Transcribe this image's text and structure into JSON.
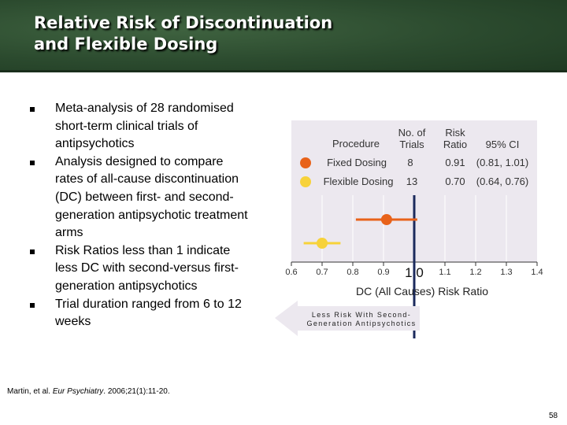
{
  "slide": {
    "title_line1": "Relative Risk of Discontinuation",
    "title_line2": "and Flexible Dosing",
    "bullets": [
      "Meta-analysis of 28 randomised short-term clinical trials of antipsychotics",
      "Analysis designed to compare rates of all-cause discontinuation (DC) between first- and second-generation antipsychotic treatment arms",
      "Risk Ratios less than 1 indicate less DC with second-versus first-generation antipsychotics",
      "Trial duration ranged from 6 to 12 weeks"
    ],
    "citation_prefix": "Martin, et al. ",
    "citation_journal": "Eur Psychiatry",
    "citation_suffix": ". 2006;21(1):11-20.",
    "page_number": "58"
  },
  "table": {
    "headers": {
      "procedure": "Procedure",
      "trials_l1": "No. of",
      "trials_l2": "Trials",
      "ratio_l1": "Risk",
      "ratio_l2": "Ratio",
      "ci": "95% CI"
    },
    "rows": [
      {
        "procedure": "Fixed Dosing",
        "trials": "8",
        "ratio": "0.91",
        "ci": "(0.81, 1.01)",
        "color": "#e8621a"
      },
      {
        "procedure": "Flexible Dosing",
        "trials": "13",
        "ratio": "0.70",
        "ci": "(0.64, 0.76)",
        "color": "#f7d23a"
      }
    ]
  },
  "arrow_label_line1": "Less Risk With Second-",
  "arrow_label_line2": "Generation Antipsychotics",
  "chart_data": {
    "type": "scatter",
    "xlabel": "DC (All Causes) Risk Ratio",
    "xlim": [
      0.6,
      1.4
    ],
    "ticks": [
      {
        "value": 0.6,
        "label": "0.6"
      },
      {
        "value": 0.7,
        "label": "0.7"
      },
      {
        "value": 0.8,
        "label": "0.8"
      },
      {
        "value": 0.9,
        "label": "0.9"
      },
      {
        "value": 1.0,
        "label": "1.0"
      },
      {
        "value": 1.1,
        "label": "1.1"
      },
      {
        "value": 1.2,
        "label": "1.2"
      },
      {
        "value": 1.3,
        "label": "1.3"
      },
      {
        "value": 1.4,
        "label": "1.4"
      }
    ],
    "reference_line": 1.0,
    "series": [
      {
        "name": "Fixed Dosing",
        "estimate": 0.91,
        "ci_low": 0.81,
        "ci_high": 1.01,
        "color": "#e8621a"
      },
      {
        "name": "Flexible Dosing",
        "estimate": 0.7,
        "ci_low": 0.64,
        "ci_high": 0.76,
        "color": "#f7d23a"
      }
    ],
    "colors": {
      "panel": "#ece8ef",
      "grid": "#ffffff",
      "reference": "#1b2a5c",
      "axis": "#333333"
    }
  }
}
